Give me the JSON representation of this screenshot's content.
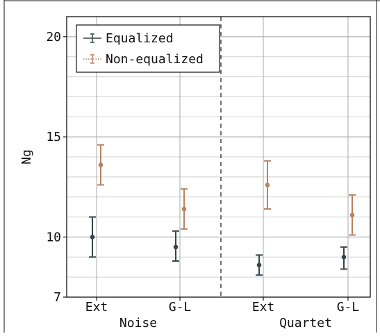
{
  "chart_data": {
    "type": "errorbar",
    "ylabel": "Ng",
    "ylim": [
      7,
      21
    ],
    "yticks": [
      7,
      10,
      15,
      20
    ],
    "ytick_labels": [
      "7",
      "10",
      "15",
      "20"
    ],
    "minor_grid_step": 1,
    "grid": true,
    "groups": [
      {
        "name": "Noise",
        "categories": [
          "Ext",
          "G-L"
        ]
      },
      {
        "name": "Quartet",
        "categories": [
          "Ext",
          "G-L"
        ]
      }
    ],
    "series": [
      {
        "name": "Equalized",
        "color": "#34444a",
        "linestyle": "solid",
        "points": [
          {
            "group": "Noise",
            "category": "Ext",
            "value": 10.0,
            "lower": 9.0,
            "upper": 11.0
          },
          {
            "group": "Noise",
            "category": "G-L",
            "value": 9.5,
            "lower": 8.8,
            "upper": 10.3
          },
          {
            "group": "Quartet",
            "category": "Ext",
            "value": 8.6,
            "lower": 8.1,
            "upper": 9.1
          },
          {
            "group": "Quartet",
            "category": "G-L",
            "value": 9.0,
            "lower": 8.4,
            "upper": 9.5
          }
        ]
      },
      {
        "name": "Non-equalized",
        "color": "#b8835e",
        "linestyle": "dotted",
        "points": [
          {
            "group": "Noise",
            "category": "Ext",
            "value": 13.6,
            "lower": 12.6,
            "upper": 14.6
          },
          {
            "group": "Noise",
            "category": "G-L",
            "value": 11.4,
            "lower": 10.4,
            "upper": 12.4
          },
          {
            "group": "Quartet",
            "category": "Ext",
            "value": 12.6,
            "lower": 11.4,
            "upper": 13.8
          },
          {
            "group": "Quartet",
            "category": "G-L",
            "value": 11.1,
            "lower": 10.1,
            "upper": 12.1
          }
        ]
      }
    ],
    "legend_position": "top-left",
    "group_separator": "dashed"
  }
}
